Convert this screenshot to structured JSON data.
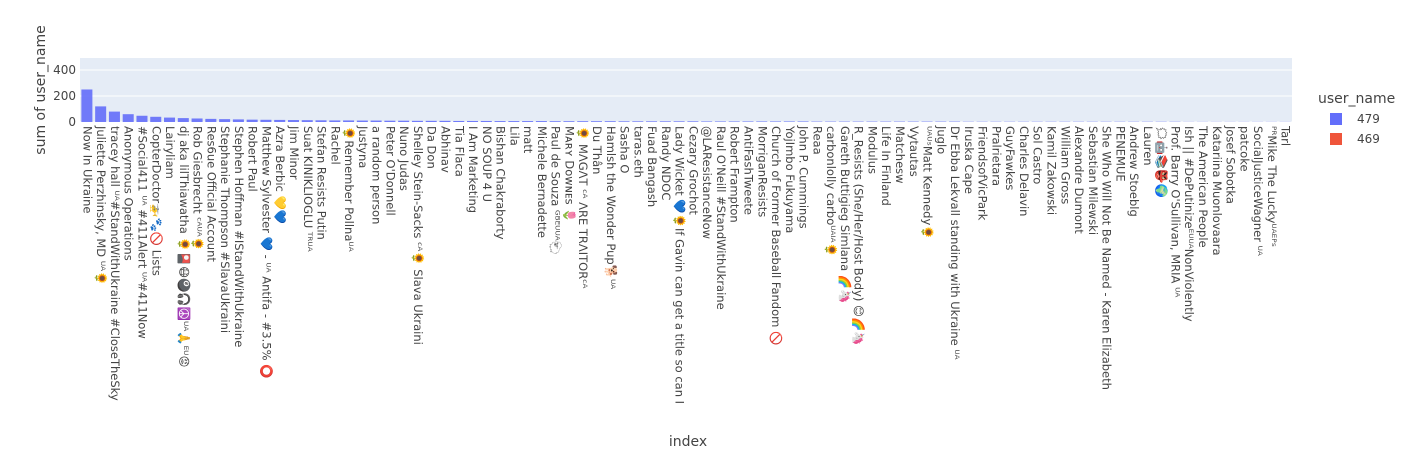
{
  "chart_data": {
    "type": "bar",
    "y_label": "sum of user_name",
    "x_label": "index",
    "legend_title": "user_name",
    "categories": [
      "Now In Ukraine",
      "Juliette Perzhinsky, MD ᵁᴬ🌻",
      "tracey hall ᵁᴬ#StandWithUkraine #CloseTheSky",
      "Anonymous Operations",
      "#Social411 ᵁᴬ #411Alert ᵁᴬ#411Now",
      "CopterDoctor🚁🐾🚫 Lists",
      "Lairyliam",
      "dj aka lilThiawatha 🌻🎴😷🎱🎧☮️ᵁᴬ🙏ᴱᵁ😡",
      "Rob Giesbrecht ᶜᴬᵁᴬ🌻",
      "Res6ue Official Account",
      "Stephanie Thompson #SlavaUkraini",
      "Stephen Hoffman #IStandWithUkraine",
      "Robert Paul",
      "Matthew Sylvester 💙 - ᵁᴬ Antifa - #3.5% ⭕",
      "Azra Berbic 💛💙",
      "Jim Minor",
      "Suat KINIKLIOGLU ᵀᴿᵁᴬ",
      "Stefan Resists Putin",
      "Rachel",
      "🌻Remember Pollnaᵁᴬ",
      "Justyna",
      "a random person",
      "Peter O'Donnell",
      "Nuno Judas",
      "Shelley Stein-Sacks ᶜᴬ🌻 Slava Ukraini",
      "Da Don",
      "Abhinav",
      "Tia Flaca",
      "I Am Marketing",
      "NO SOUP 4 U",
      "Bishan Chakraborty",
      "Lila",
      "matt",
      "Michele Bernadette",
      "Paul de Souza ᴳᴮᴱᵁᵁᴬ🐑",
      "Mᴀʀʏ Dᴏᴡɴᴇs 🌷",
      "🌻 MΛGΛT ᶜᴬ ΛRE TRΛITORᶜᴬ",
      "Du Thân",
      "Hamlsh the Wonder Pup🐕ᵁᴬ",
      "Sasha O",
      "taras.eth",
      "Fuad Bangash",
      "Randy NDOC",
      "Lady Wicket 💙🌻If Gavin can get a title so can I",
      "Cezary Grochot",
      "@LAResistanceNow",
      "Raul O'Neill #StandWithUkraine",
      "Robert Frampton",
      "AntiFashTweete",
      "MorriganResists",
      "Church of Former Baseball Fandom 🚫",
      "YojImbo Fukuyama",
      "John P. Cummings",
      "Reaa",
      "carbonlolly carboᵁᴬᴵᴬ🌻",
      "Gareth Buttigieg Simlana 🌈🦄",
      "R_Resists (She/Her/Host Body) 😊🌈🦄",
      "Modulus",
      "Life In Finland",
      "Matchesw",
      "Vytautas",
      "ᵁᴬᵁˢMatt Kennedy🌻",
      "Juglo",
      "Dr Ebba Lekvall standing with Ukraine ᵁᴬ",
      "Iruska Cape",
      "FriendsofVicPark",
      "Pralrietara",
      "GuyFawkes",
      "Charles Delavin",
      "Sol Castro",
      "Kamil Zakowski",
      "William Gross",
      "Alexandre Dumont",
      "Sebastian Milewski",
      "She Who Will Not Be Named - Karen Elizabeth",
      "PENEMUE",
      "Andrew Stoeblg",
      "Lauren",
      "🗯🤖📚👺🌍",
      "Prof. Barry O'Sullivan, MRIA ᵁᴬ",
      "Ish || #DePutinizeᴱᵁᵁᴬNonViolently",
      "The American People",
      "Katariina Muonlovaara",
      "Josef Sobotka",
      "patcoke",
      "SocialJusticeWagner ᵁᴬ",
      "ᴾᴿMike The Luckyᵁᴬᴱᴾˢ",
      "Tarl"
    ],
    "series": [
      {
        "name": "479",
        "color": "#636efa",
        "values": [
          250,
          120,
          80,
          60,
          48,
          40,
          34,
          30,
          27,
          24,
          22,
          20,
          18,
          17,
          16,
          15,
          14,
          13,
          12,
          12,
          11,
          11,
          10,
          10,
          9,
          9,
          9,
          8,
          8,
          8,
          7,
          7,
          7,
          7,
          6,
          6,
          6,
          6,
          6,
          5,
          5,
          5,
          5,
          5,
          5,
          4,
          4,
          4,
          4,
          4,
          4,
          4,
          4,
          3,
          3,
          3,
          3,
          3,
          3,
          3,
          3,
          3,
          3,
          3,
          2,
          2,
          2,
          2,
          2,
          2,
          2,
          2,
          2,
          2,
          2,
          2,
          2,
          2,
          2,
          2,
          1,
          1,
          1,
          1,
          1,
          1,
          1,
          1
        ]
      },
      {
        "name": "469",
        "color": "#ef553b",
        "values": [
          null,
          null,
          null,
          null,
          null,
          null,
          null,
          null,
          null,
          null,
          null,
          null,
          null,
          null,
          null,
          null,
          null,
          null,
          null,
          null,
          null,
          null,
          null,
          null,
          null,
          null,
          null,
          null,
          null,
          null,
          null,
          null,
          null,
          null,
          null,
          null,
          null,
          null,
          null,
          null,
          null,
          null,
          null,
          null,
          null,
          null,
          null,
          null,
          null,
          null,
          null,
          null,
          null,
          null,
          null,
          null,
          null,
          null,
          null,
          null,
          null,
          null,
          null,
          null,
          null,
          null,
          null,
          null,
          null,
          null,
          null,
          null,
          null,
          null,
          null,
          null,
          null,
          null,
          null,
          null,
          null,
          null,
          null,
          null,
          null,
          null,
          null,
          null
        ]
      }
    ],
    "ylim": [
      0,
      492
    ],
    "yticks": [
      0,
      200,
      400
    ],
    "grid": true,
    "legend": "right"
  }
}
